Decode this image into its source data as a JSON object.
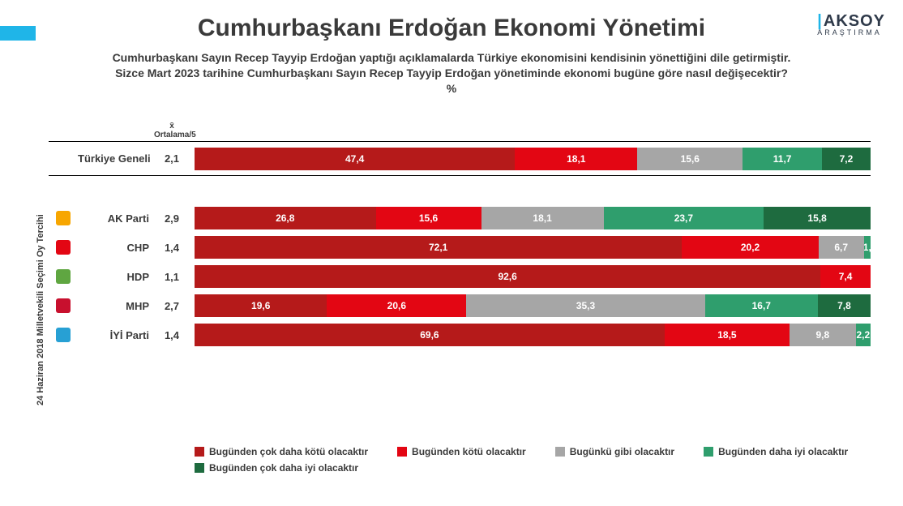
{
  "meta": {
    "brand_main": "AKSOY",
    "brand_sub": "ARAŞTIRMA",
    "accent": "#1fb5e8"
  },
  "title": "Cumhurbaşkanı Erdoğan Ekonomi Yönetimi",
  "question_line1": "Cumhurbaşkanı Sayın Recep Tayyip Erdoğan yaptığı açıklamalarda Türkiye ekonomisini kendisinin yönettiğini dile getirmiştir.",
  "question_line2": "Sizce Mart 2023 tarihine Cumhurbaşkanı Sayın Recep Tayyip Erdoğan yönetiminde ekonomi bugüne göre nasıl değişecektir?",
  "question_line3": "%",
  "avg_head_line1": "x̄",
  "avg_head_line2": "Ortalama/5",
  "y_axis_label": "24 Haziran 2018 Milletvekili Seçimi Oy Tercihi",
  "colors": {
    "c1": "#b51a1a",
    "c2": "#e30613",
    "c3": "#a6a6a6",
    "c4": "#2f9e6d",
    "c5": "#1e6b3f",
    "text_on_bar": "#ffffff"
  },
  "legend": [
    {
      "label": "Bugünden çok daha kötü olacaktır",
      "color_key": "c1"
    },
    {
      "label": "Bugünden kötü olacaktır",
      "color_key": "c2"
    },
    {
      "label": "Bugünkü gibi olacaktır",
      "color_key": "c3"
    },
    {
      "label": "Bugünden daha iyi olacaktır",
      "color_key": "c4"
    },
    {
      "label": "Bugünden çok daha iyi olacaktır",
      "color_key": "c5"
    }
  ],
  "general_row": {
    "label": "Türkiye Geneli",
    "avg": "2,1",
    "values": [
      47.4,
      18.1,
      15.6,
      11.7,
      7.2
    ],
    "display": [
      "47,4",
      "18,1",
      "15,6",
      "11,7",
      "7,2"
    ]
  },
  "party_rows": [
    {
      "label": "AK Parti",
      "avg": "2,9",
      "icon_bg": "#f7a600",
      "values": [
        26.8,
        15.6,
        18.1,
        23.7,
        15.8
      ],
      "display": [
        "26,8",
        "15,6",
        "18,1",
        "23,7",
        "15,8"
      ]
    },
    {
      "label": "CHP",
      "avg": "1,4",
      "icon_bg": "#e30613",
      "values": [
        72.1,
        20.2,
        6.7,
        1.0,
        0
      ],
      "display": [
        "72,1",
        "20,2",
        "6,7",
        "1,",
        ""
      ]
    },
    {
      "label": "HDP",
      "avg": "1,1",
      "icon_bg": "#5fa641",
      "values": [
        92.6,
        7.4,
        0,
        0,
        0
      ],
      "display": [
        "92,6",
        "7,4",
        "",
        "",
        ""
      ]
    },
    {
      "label": "MHP",
      "avg": "2,7",
      "icon_bg": "#c8102e",
      "values": [
        19.6,
        20.6,
        35.3,
        16.7,
        7.8
      ],
      "display": [
        "19,6",
        "20,6",
        "35,3",
        "16,7",
        "7,8"
      ]
    },
    {
      "label": "İYİ Parti",
      "avg": "1,4",
      "icon_bg": "#27a0d4",
      "values": [
        69.6,
        18.5,
        9.8,
        2.2,
        0
      ],
      "display": [
        "69,6",
        "18,5",
        "9,8",
        "2,2",
        ""
      ]
    }
  ]
}
